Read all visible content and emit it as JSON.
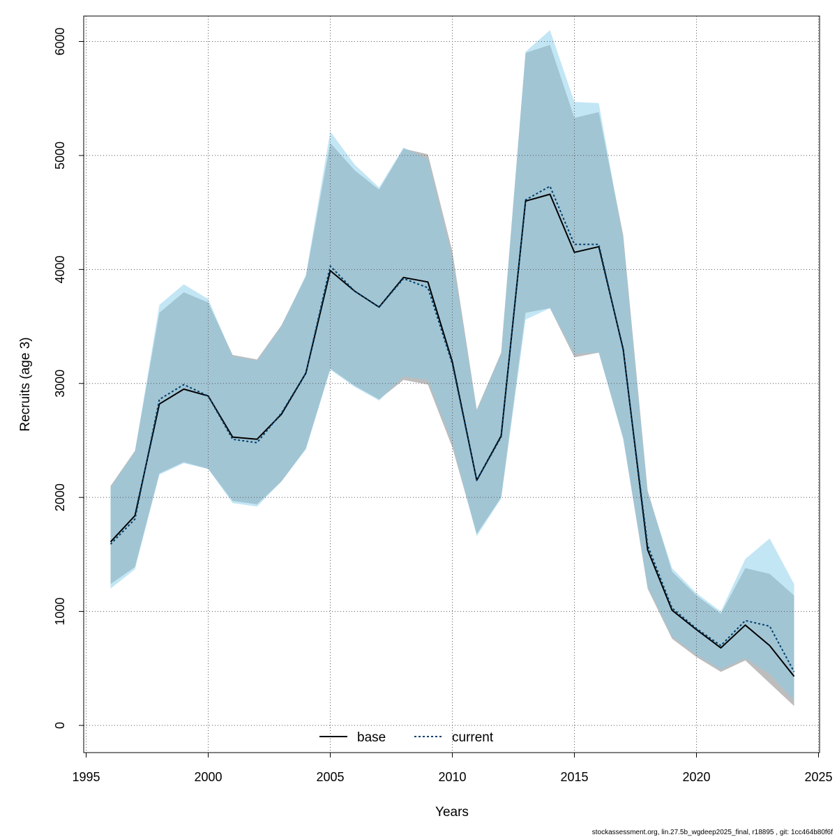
{
  "chart_data": {
    "type": "line",
    "xlabel": "Years",
    "ylabel": "Recruits (age 3)",
    "xlim": [
      1995,
      2025
    ],
    "ylim": [
      0,
      6000
    ],
    "xticks": [
      1995,
      2000,
      2005,
      2010,
      2015,
      2020,
      2025
    ],
    "yticks": [
      0,
      1000,
      2000,
      3000,
      4000,
      5000,
      6000
    ],
    "grid": true,
    "legend_position": "bottom",
    "footer": "stockassessment.org, lin.27.5b_wgdeep2025_final, r18895 , git: 1cc464b80f6f",
    "x": [
      1996,
      1997,
      1998,
      1999,
      2000,
      2001,
      2002,
      2003,
      2004,
      2005,
      2006,
      2007,
      2008,
      2009,
      2010,
      2011,
      2012,
      2013,
      2014,
      2015,
      2016,
      2017,
      2018,
      2019,
      2020,
      2021,
      2022,
      2023,
      2024
    ],
    "series": [
      {
        "name": "base",
        "color": "#000000",
        "band_color": "#999999",
        "line_style": "solid",
        "values": [
          1610,
          1840,
          2820,
          2950,
          2890,
          2530,
          2510,
          2730,
          3090,
          3990,
          3810,
          3670,
          3930,
          3890,
          3190,
          2150,
          2540,
          4600,
          4660,
          4150,
          4200,
          3300,
          1540,
          1010,
          840,
          680,
          880,
          700,
          430
        ],
        "lower": [
          1240,
          1390,
          2210,
          2310,
          2250,
          1970,
          1940,
          2140,
          2430,
          3130,
          2980,
          2860,
          3030,
          2990,
          2440,
          1680,
          2000,
          3620,
          3660,
          3230,
          3270,
          2520,
          1200,
          760,
          600,
          470,
          570,
          370,
          170
        ],
        "upper": [
          2100,
          2410,
          3620,
          3800,
          3710,
          3250,
          3210,
          3510,
          3940,
          5110,
          4870,
          4700,
          5060,
          5010,
          4160,
          2770,
          3270,
          5900,
          5970,
          5330,
          5380,
          4300,
          2060,
          1350,
          1140,
          980,
          1380,
          1330,
          1140
        ]
      },
      {
        "name": "current",
        "color": "#003f6b",
        "band_color": "#87ceeb",
        "line_style": "dotted",
        "values": [
          1590,
          1810,
          2860,
          2990,
          2890,
          2510,
          2480,
          2740,
          3090,
          4030,
          3810,
          3670,
          3920,
          3840,
          3170,
          2150,
          2530,
          4610,
          4730,
          4220,
          4220,
          3290,
          1580,
          1030,
          850,
          700,
          920,
          870,
          470
        ],
        "lower": [
          1200,
          1370,
          2200,
          2300,
          2250,
          1950,
          1920,
          2140,
          2420,
          3120,
          2970,
          2850,
          3060,
          3030,
          2480,
          1660,
          1990,
          3560,
          3660,
          3260,
          3270,
          2510,
          1220,
          780,
          620,
          490,
          590,
          450,
          220
        ],
        "upper": [
          2090,
          2400,
          3690,
          3870,
          3740,
          3240,
          3200,
          3500,
          3950,
          5210,
          4920,
          4720,
          5070,
          4970,
          4100,
          2760,
          3260,
          5910,
          6100,
          5470,
          5460,
          4260,
          2040,
          1380,
          1160,
          1000,
          1460,
          1640,
          1240
        ]
      }
    ]
  }
}
